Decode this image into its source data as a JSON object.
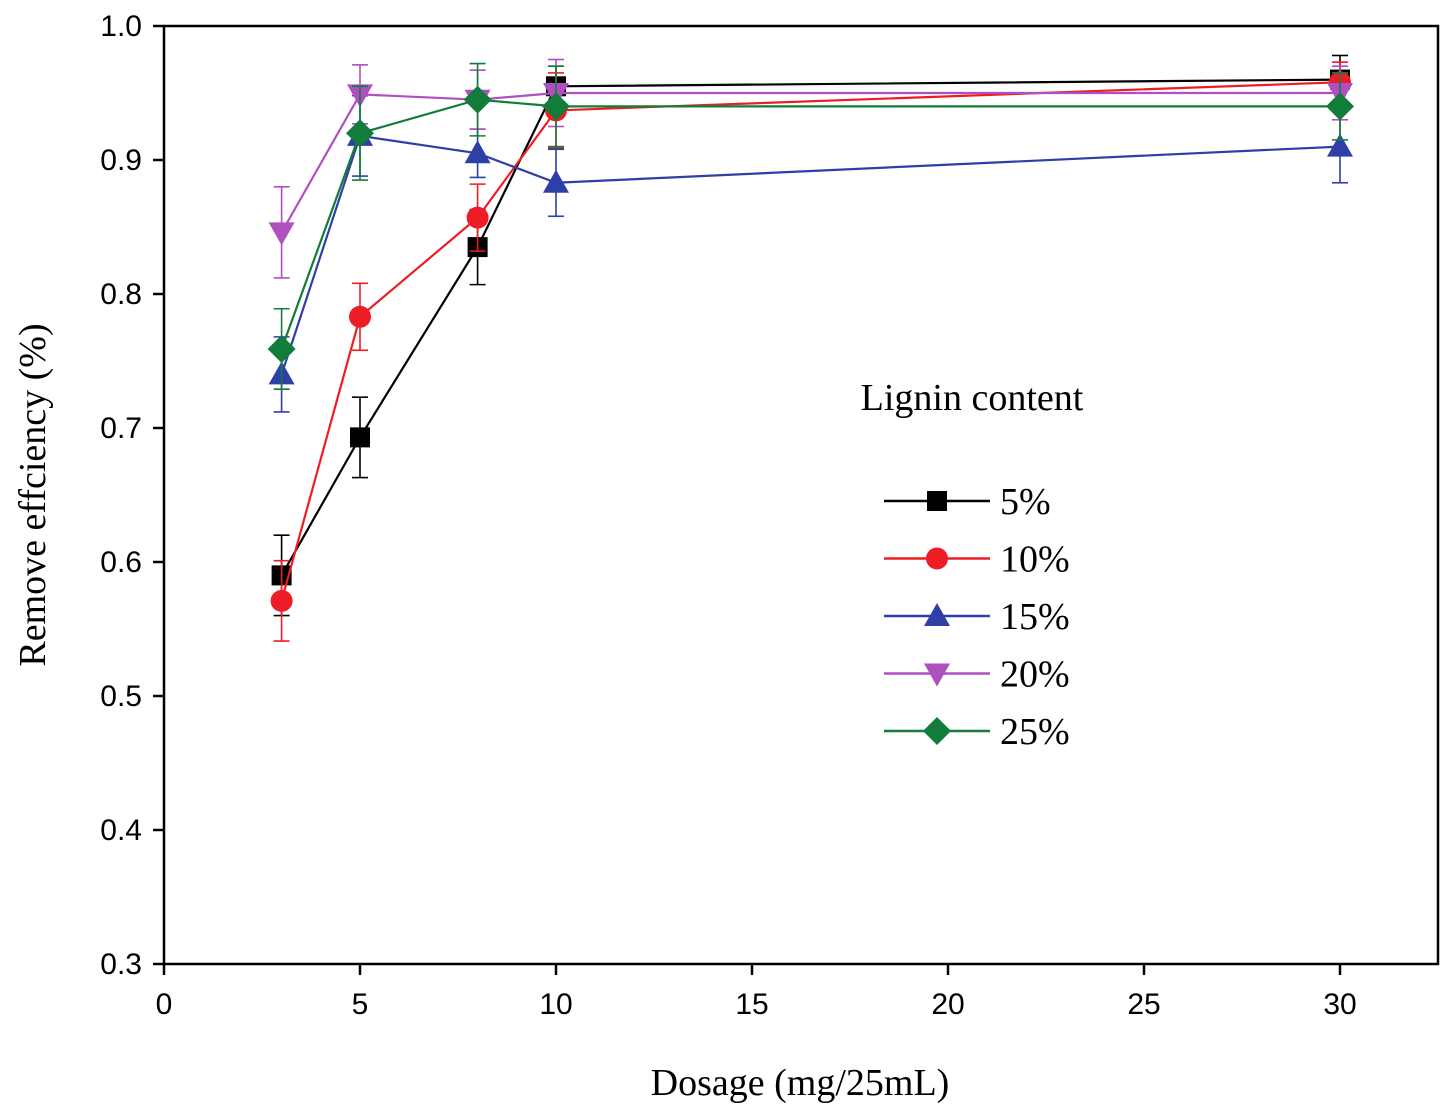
{
  "chart_data": {
    "type": "line",
    "title": "",
    "xlabel": "Dosage (mg/25mL)",
    "ylabel": "Remove effciency (%)",
    "xlim": [
      0,
      32.5
    ],
    "ylim": [
      0.3,
      1.0
    ],
    "xticks": [
      0,
      5,
      10,
      15,
      20,
      25,
      30
    ],
    "xtick_labels": [
      "0",
      "5",
      "10",
      "15",
      "20",
      "25",
      "30"
    ],
    "yticks": [
      0.3,
      0.4,
      0.5,
      0.6,
      0.7,
      0.8,
      0.9,
      1.0
    ],
    "ytick_labels": [
      "0.3",
      "0.4",
      "0.5",
      "0.6",
      "0.7",
      "0.8",
      "0.9",
      "1.0"
    ],
    "grid": false,
    "legend_title": "Lignin content",
    "legend_position": "right",
    "x": [
      3,
      5,
      8,
      10,
      30
    ],
    "series": [
      {
        "name": "5%",
        "color": "#000000",
        "marker": "square",
        "values": [
          0.59,
          0.693,
          0.835,
          0.955,
          0.96
        ],
        "errors": [
          0.03,
          0.03,
          0.028,
          0.015,
          0.018
        ]
      },
      {
        "name": "10%",
        "color": "#ee1c24",
        "marker": "circle",
        "values": [
          0.571,
          0.783,
          0.857,
          0.937,
          0.958
        ],
        "errors": [
          0.03,
          0.025,
          0.025,
          0.028,
          0.015
        ]
      },
      {
        "name": "15%",
        "color": "#2e3fa8",
        "marker": "triangle",
        "values": [
          0.74,
          0.918,
          0.905,
          0.883,
          0.91
        ],
        "errors": [
          0.028,
          0.03,
          0.018,
          0.025,
          0.027
        ]
      },
      {
        "name": "20%",
        "color": "#b04fc0",
        "marker": "triangle-down",
        "values": [
          0.846,
          0.949,
          0.945,
          0.95,
          0.95
        ],
        "errors": [
          0.034,
          0.022,
          0.022,
          0.025,
          0.02
        ]
      },
      {
        "name": "25%",
        "color": "#127d3a",
        "marker": "diamond",
        "values": [
          0.759,
          0.92,
          0.945,
          0.94,
          0.94
        ],
        "errors": [
          0.03,
          0.035,
          0.027,
          0.03,
          0.025
        ]
      }
    ]
  }
}
